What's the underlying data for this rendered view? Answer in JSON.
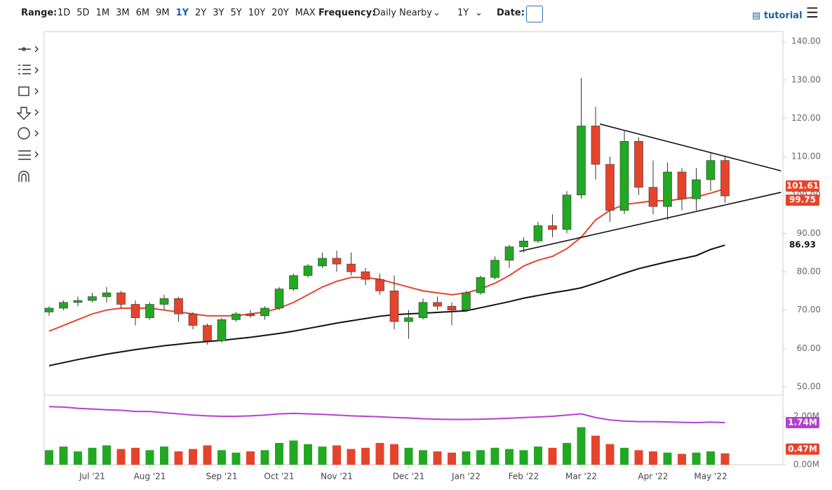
{
  "toolbar": {
    "range_label": "Range:",
    "ranges": [
      "1D",
      "5D",
      "1M",
      "3M",
      "6M",
      "9M",
      "1Y",
      "2Y",
      "3Y",
      "5Y",
      "10Y",
      "20Y",
      "MAX"
    ],
    "active_range": "1Y",
    "frequency_label": "Frequency:",
    "frequency": "Daily Nearby",
    "period": "1Y",
    "date_label": "Date:",
    "tutorial": "tutorial"
  },
  "chart_data": {
    "type": "candlestick",
    "categories": [
      null,
      null,
      null,
      "Jul '21",
      null,
      null,
      null,
      "Aug '21",
      null,
      null,
      null,
      null,
      "Sep '21",
      null,
      null,
      null,
      "Oct '21",
      null,
      null,
      null,
      "Nov '21",
      null,
      null,
      null,
      null,
      "Dec '21",
      null,
      null,
      null,
      "Jan '22",
      null,
      null,
      null,
      "Feb '22",
      null,
      null,
      null,
      "Mar '22",
      null,
      null,
      null,
      null,
      "Apr '22",
      null,
      null,
      null,
      "May '22",
      null
    ],
    "open": [
      69.5,
      70.5,
      72,
      72.5,
      73.5,
      74.5,
      71.5,
      68,
      71.5,
      73,
      69,
      66,
      62,
      67.5,
      69,
      68.5,
      70.5,
      75.5,
      79,
      81.5,
      83.5,
      82,
      80,
      78,
      75,
      67,
      68,
      72,
      71,
      70,
      74.5,
      78.5,
      83,
      86.5,
      88,
      92,
      91,
      100,
      118,
      108,
      96,
      114,
      102,
      97,
      106,
      99,
      104,
      109
    ],
    "high": [
      71,
      72.5,
      73.5,
      74.5,
      76,
      75,
      72.5,
      72,
      74,
      73.5,
      69.5,
      66.5,
      68,
      69.5,
      70,
      71,
      76,
      79.5,
      82,
      85,
      85.5,
      85,
      81,
      79.5,
      79,
      70,
      73,
      73.5,
      72,
      75,
      79,
      84,
      87,
      89,
      93,
      95,
      101,
      130.5,
      123,
      110,
      117,
      115,
      109,
      108.5,
      107,
      107,
      111,
      110
    ],
    "low": [
      68.5,
      70,
      71,
      72,
      72,
      70.5,
      66,
      67.5,
      70,
      67,
      65,
      61,
      61.5,
      67,
      68,
      67.5,
      70,
      75,
      78.5,
      81,
      80,
      79,
      76.5,
      74,
      65,
      62.5,
      67.5,
      70,
      66,
      69.5,
      74,
      78,
      81,
      85,
      87.5,
      89,
      90,
      99,
      104,
      93,
      95,
      100,
      95,
      93.5,
      96,
      96,
      101,
      98
    ],
    "close": [
      70.5,
      72,
      72.5,
      73.5,
      74.5,
      71.5,
      68,
      71.5,
      73,
      69,
      66,
      62,
      67.5,
      69,
      68.5,
      70.5,
      75.5,
      79,
      81.5,
      83.5,
      82,
      80,
      78,
      75,
      67,
      68,
      72,
      71,
      70,
      74.5,
      78.5,
      83,
      86.5,
      88,
      92,
      91,
      100,
      118,
      108,
      96,
      114,
      102,
      97,
      106,
      99,
      104,
      109,
      99.75
    ],
    "up_color": "#22a822",
    "down_color": "#e5442c",
    "ylim": [
      47.8,
      142.6
    ],
    "yticks": [
      {
        "value": 50,
        "label": "50.00"
      },
      {
        "value": 60,
        "label": "60.00"
      },
      {
        "value": 70,
        "label": "70.00"
      },
      {
        "value": 80,
        "label": "80.00"
      },
      {
        "value": 90,
        "label": "90.00"
      },
      {
        "value": 100,
        "label": "100.00"
      },
      {
        "value": 110,
        "label": "110.00"
      },
      {
        "value": 120,
        "label": "120.00"
      },
      {
        "value": 130,
        "label": "130.00"
      },
      {
        "value": 140,
        "label": "140.00"
      }
    ],
    "overlays": [
      {
        "color": "#e5442c",
        "values": [
          64.5,
          66,
          67.5,
          69,
          70,
          70.5,
          70.5,
          70.5,
          70,
          69.5,
          69,
          68.5,
          68.5,
          68.5,
          69,
          69.5,
          70.5,
          72,
          74,
          76,
          77.5,
          78.5,
          78.5,
          78,
          77,
          76,
          75,
          74.5,
          74,
          74.5,
          75.5,
          77,
          79,
          81.5,
          83,
          84,
          86,
          89,
          93.5,
          96,
          97.5,
          98,
          98.5,
          98.5,
          99,
          99.5,
          100.5,
          101.61
        ]
      },
      {
        "color": "#111111",
        "values": [
          55.5,
          56.3,
          57.1,
          57.8,
          58.5,
          59.1,
          59.7,
          60.2,
          60.7,
          61.1,
          61.5,
          61.8,
          62.1,
          62.5,
          62.9,
          63.4,
          63.9,
          64.5,
          65.2,
          65.9,
          66.6,
          67.2,
          67.8,
          68.4,
          68.8,
          69,
          69.2,
          69.4,
          69.6,
          69.8,
          70.6,
          71.4,
          72.2,
          73.1,
          73.8,
          74.5,
          75.1,
          75.8,
          77,
          78.3,
          79.6,
          80.8,
          81.7,
          82.6,
          83.4,
          84.2,
          85.8,
          86.93
        ]
      }
    ],
    "trendlines": [
      {
        "x": [
          38.3,
          50.9
        ],
        "y": [
          118.5,
          106.3
        ]
      },
      {
        "x": [
          32.7,
          50.9
        ],
        "y": [
          85.3,
          100.7
        ]
      }
    ],
    "volume": {
      "ylim": [
        0,
        2.87
      ],
      "yticks": [
        {
          "value": 0,
          "label": "0.00M"
        },
        {
          "value": 2,
          "label": "2.00M"
        }
      ],
      "values": [
        0.6,
        0.75,
        0.55,
        0.7,
        0.8,
        0.65,
        0.7,
        0.6,
        0.75,
        0.55,
        0.65,
        0.8,
        0.6,
        0.5,
        0.55,
        0.6,
        0.9,
        1.0,
        0.85,
        0.75,
        0.8,
        0.65,
        0.7,
        0.9,
        0.85,
        0.7,
        0.6,
        0.55,
        0.5,
        0.55,
        0.6,
        0.7,
        0.65,
        0.6,
        0.75,
        0.7,
        0.9,
        1.55,
        1.2,
        0.85,
        0.7,
        0.6,
        0.55,
        0.5,
        0.45,
        0.5,
        0.55,
        0.47
      ],
      "value_labels": [
        null,
        null,
        null,
        null,
        null,
        null,
        null,
        null,
        null,
        null,
        null,
        null,
        null,
        null,
        null,
        null,
        null,
        null,
        null,
        null,
        null,
        null,
        null,
        null,
        null,
        null,
        null,
        null,
        null,
        null,
        null,
        null,
        null,
        null,
        null,
        null,
        null,
        null,
        null,
        null,
        null,
        null,
        null,
        null,
        null,
        null,
        null,
        "0.47M"
      ],
      "average": {
        "color": "#b540d0",
        "values": [
          2.4,
          2.38,
          2.33,
          2.3,
          2.27,
          2.25,
          2.2,
          2.2,
          2.15,
          2.1,
          2.05,
          2.02,
          2,
          2,
          2.02,
          2.05,
          2.1,
          2.12,
          2.1,
          2.08,
          2.05,
          2.02,
          2,
          1.98,
          1.95,
          1.93,
          1.9,
          1.88,
          1.87,
          1.87,
          1.88,
          1.9,
          1.92,
          1.95,
          1.97,
          2,
          2.05,
          2.1,
          1.95,
          1.85,
          1.8,
          1.78,
          1.78,
          1.77,
          1.75,
          1.74,
          1.76,
          1.74
        ],
        "value_labels": [
          null,
          null,
          null,
          null,
          null,
          null,
          null,
          null,
          null,
          null,
          null,
          null,
          null,
          null,
          null,
          null,
          null,
          null,
          null,
          null,
          null,
          null,
          null,
          null,
          null,
          null,
          null,
          null,
          null,
          null,
          null,
          null,
          null,
          null,
          null,
          null,
          null,
          null,
          null,
          null,
          null,
          null,
          null,
          null,
          null,
          null,
          null,
          "1.74M"
        ]
      }
    }
  }
}
